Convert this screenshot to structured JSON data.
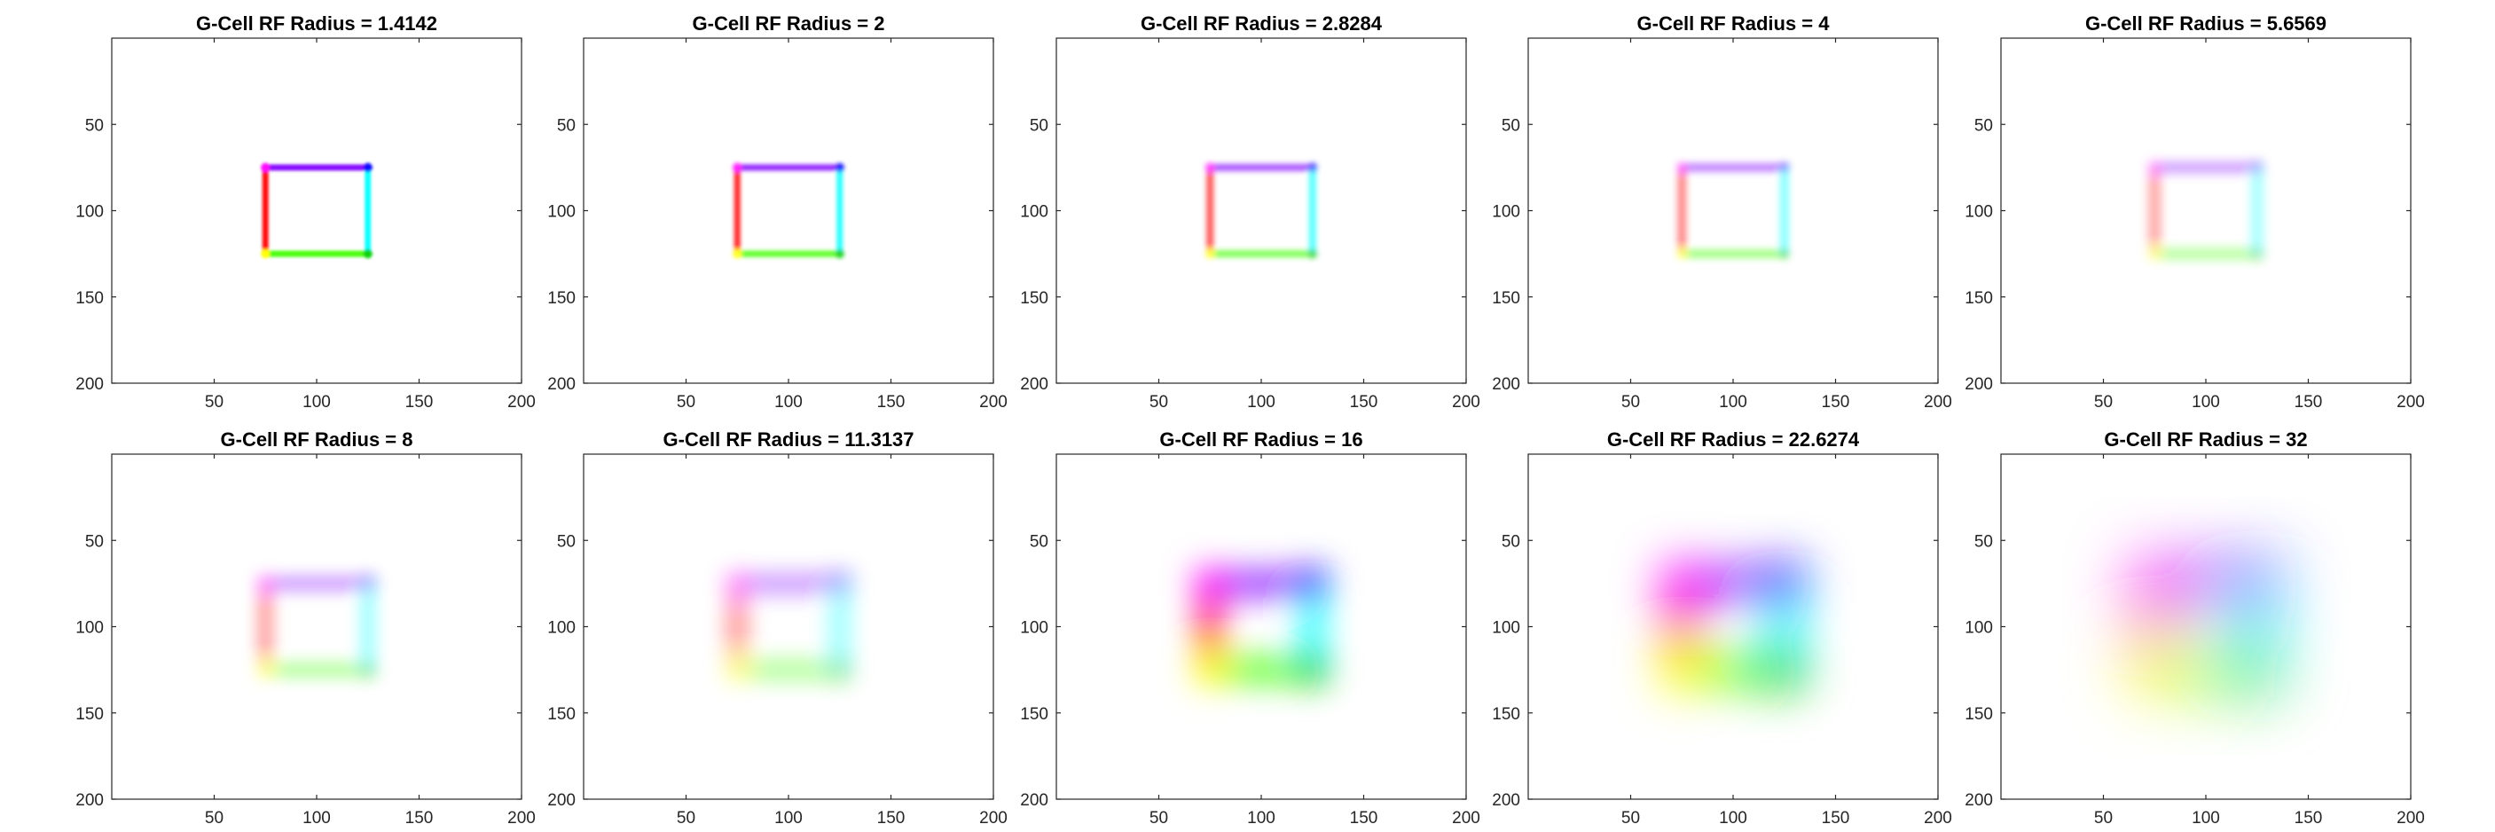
{
  "chart_data": [
    {
      "type": "heatmap",
      "title": "G-Cell RF Radius = 1.4142",
      "xticks": [
        50,
        100,
        150,
        200
      ],
      "yticks": [
        50,
        100,
        150,
        200
      ],
      "xlim": [
        0,
        200
      ],
      "ylim": [
        0,
        200
      ],
      "y_reversed": true,
      "radius": 1.4142
    },
    {
      "type": "heatmap",
      "title": "G-Cell RF Radius = 2",
      "xticks": [
        50,
        100,
        150,
        200
      ],
      "yticks": [
        50,
        100,
        150,
        200
      ],
      "xlim": [
        0,
        200
      ],
      "ylim": [
        0,
        200
      ],
      "y_reversed": true,
      "radius": 2
    },
    {
      "type": "heatmap",
      "title": "G-Cell RF Radius = 2.8284",
      "xticks": [
        50,
        100,
        150,
        200
      ],
      "yticks": [
        50,
        100,
        150,
        200
      ],
      "xlim": [
        0,
        200
      ],
      "ylim": [
        0,
        200
      ],
      "y_reversed": true,
      "radius": 2.8284
    },
    {
      "type": "heatmap",
      "title": "G-Cell RF Radius = 4",
      "xticks": [
        50,
        100,
        150,
        200
      ],
      "yticks": [
        50,
        100,
        150,
        200
      ],
      "xlim": [
        0,
        200
      ],
      "ylim": [
        0,
        200
      ],
      "y_reversed": true,
      "radius": 4
    },
    {
      "type": "heatmap",
      "title": "G-Cell RF Radius = 5.6569",
      "xticks": [
        50,
        100,
        150,
        200
      ],
      "yticks": [
        50,
        100,
        150,
        200
      ],
      "xlim": [
        0,
        200
      ],
      "ylim": [
        0,
        200
      ],
      "y_reversed": true,
      "radius": 5.6569
    },
    {
      "type": "heatmap",
      "title": "G-Cell RF Radius = 8",
      "xticks": [
        50,
        100,
        150,
        200
      ],
      "yticks": [
        50,
        100,
        150,
        200
      ],
      "xlim": [
        0,
        200
      ],
      "ylim": [
        0,
        200
      ],
      "y_reversed": true,
      "radius": 8
    },
    {
      "type": "heatmap",
      "title": "G-Cell RF Radius = 11.3137",
      "xticks": [
        50,
        100,
        150,
        200
      ],
      "yticks": [
        50,
        100,
        150,
        200
      ],
      "xlim": [
        0,
        200
      ],
      "ylim": [
        0,
        200
      ],
      "y_reversed": true,
      "radius": 11.3137
    },
    {
      "type": "heatmap",
      "title": "G-Cell RF Radius = 16",
      "xticks": [
        50,
        100,
        150,
        200
      ],
      "yticks": [
        50,
        100,
        150,
        200
      ],
      "xlim": [
        0,
        200
      ],
      "ylim": [
        0,
        200
      ],
      "y_reversed": true,
      "radius": 16
    },
    {
      "type": "heatmap",
      "title": "G-Cell RF Radius = 22.6274",
      "xticks": [
        50,
        100,
        150,
        200
      ],
      "yticks": [
        50,
        100,
        150,
        200
      ],
      "xlim": [
        0,
        200
      ],
      "ylim": [
        0,
        200
      ],
      "y_reversed": true,
      "radius": 22.6274
    },
    {
      "type": "heatmap",
      "title": "G-Cell RF Radius = 32",
      "xticks": [
        50,
        100,
        150,
        200
      ],
      "yticks": [
        50,
        100,
        150,
        200
      ],
      "xlim": [
        0,
        200
      ],
      "ylim": [
        0,
        200
      ],
      "y_reversed": true,
      "radius": 32
    }
  ],
  "image_content": {
    "rectangle": {
      "x_min": 75,
      "x_max": 125,
      "y_min": 75,
      "y_max": 125
    },
    "edge_colors": {
      "left": "#ff0000",
      "top": "#8000ff",
      "right": "#00ffff",
      "bottom": "#40ff00"
    },
    "corner_colors": {
      "top_left": "#ff00ff",
      "top_right": "#0000ff",
      "bottom_left": "#ffff00",
      "bottom_right": "#00d000"
    }
  }
}
